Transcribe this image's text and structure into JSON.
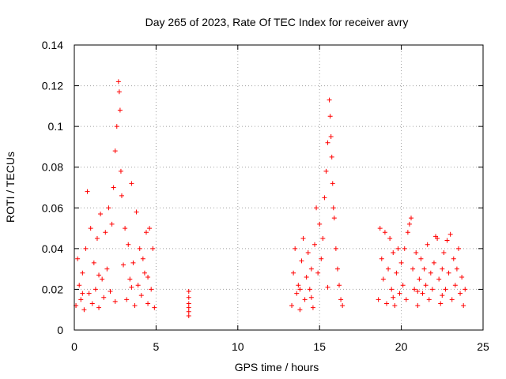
{
  "chart_data": {
    "type": "scatter",
    "title": "Day 265 of 2023, Rate Of TEC Index for receiver avry",
    "xlabel": "GPS time / hours",
    "ylabel": "ROTI / TECUs",
    "xlim": [
      0,
      25
    ],
    "ylim": [
      0,
      0.14
    ],
    "xticks": [
      0,
      5,
      10,
      15,
      20,
      25
    ],
    "yticks": [
      0,
      0.02,
      0.04,
      0.06,
      0.08,
      0.1,
      0.12,
      0.14
    ],
    "grid": true,
    "marker": "plus",
    "colors": {
      "series": "#ff0000",
      "grid": "#a0a0a0",
      "axis": "#000000"
    },
    "series": [
      {
        "points": [
          [
            0.1,
            0.012
          ],
          [
            0.2,
            0.035
          ],
          [
            0.3,
            0.022
          ],
          [
            0.4,
            0.015
          ],
          [
            0.5,
            0.028
          ],
          [
            0.6,
            0.01
          ],
          [
            0.7,
            0.04
          ],
          [
            0.8,
            0.068
          ],
          [
            0.9,
            0.018
          ],
          [
            1.0,
            0.05
          ],
          [
            1.1,
            0.013
          ],
          [
            1.2,
            0.033
          ],
          [
            1.3,
            0.02
          ],
          [
            1.4,
            0.045
          ],
          [
            1.5,
            0.011
          ],
          [
            1.6,
            0.057
          ],
          [
            1.7,
            0.025
          ],
          [
            1.8,
            0.016
          ],
          [
            1.9,
            0.048
          ],
          [
            2.0,
            0.03
          ],
          [
            2.1,
            0.06
          ],
          [
            2.2,
            0.019
          ],
          [
            2.3,
            0.052
          ],
          [
            2.4,
            0.07
          ],
          [
            2.5,
            0.088
          ],
          [
            2.6,
            0.1
          ],
          [
            2.7,
            0.122
          ],
          [
            2.75,
            0.117
          ],
          [
            2.8,
            0.108
          ],
          [
            2.85,
            0.078
          ],
          [
            2.9,
            0.066
          ],
          [
            3.0,
            0.032
          ],
          [
            3.1,
            0.05
          ],
          [
            3.2,
            0.015
          ],
          [
            3.3,
            0.042
          ],
          [
            3.4,
            0.025
          ],
          [
            3.5,
            0.072
          ],
          [
            3.6,
            0.033
          ],
          [
            3.7,
            0.012
          ],
          [
            3.8,
            0.058
          ],
          [
            3.9,
            0.022
          ],
          [
            4.0,
            0.04
          ],
          [
            4.1,
            0.017
          ],
          [
            4.2,
            0.035
          ],
          [
            4.3,
            0.028
          ],
          [
            4.4,
            0.048
          ],
          [
            4.5,
            0.013
          ],
          [
            4.6,
            0.05
          ],
          [
            4.7,
            0.02
          ],
          [
            4.8,
            0.04
          ],
          [
            4.9,
            0.011
          ],
          [
            0.5,
            0.018
          ],
          [
            1.5,
            0.027
          ],
          [
            2.5,
            0.014
          ],
          [
            3.5,
            0.021
          ],
          [
            4.5,
            0.026
          ],
          [
            7.0,
            0.019
          ],
          [
            7.0,
            0.016
          ],
          [
            7.0,
            0.013
          ],
          [
            7.0,
            0.011
          ],
          [
            7.0,
            0.009
          ],
          [
            7.0,
            0.007
          ],
          [
            13.3,
            0.012
          ],
          [
            13.4,
            0.028
          ],
          [
            13.5,
            0.04
          ],
          [
            13.6,
            0.018
          ],
          [
            13.7,
            0.022
          ],
          [
            13.8,
            0.01
          ],
          [
            13.9,
            0.034
          ],
          [
            14.0,
            0.045
          ],
          [
            14.1,
            0.015
          ],
          [
            14.2,
            0.026
          ],
          [
            14.3,
            0.038
          ],
          [
            14.4,
            0.02
          ],
          [
            14.5,
            0.03
          ],
          [
            14.6,
            0.011
          ],
          [
            14.7,
            0.042
          ],
          [
            14.8,
            0.06
          ],
          [
            14.9,
            0.028
          ],
          [
            15.0,
            0.052
          ],
          [
            15.1,
            0.035
          ],
          [
            15.2,
            0.045
          ],
          [
            15.3,
            0.065
          ],
          [
            15.4,
            0.078
          ],
          [
            15.5,
            0.092
          ],
          [
            15.6,
            0.113
          ],
          [
            15.65,
            0.105
          ],
          [
            15.7,
            0.095
          ],
          [
            15.75,
            0.085
          ],
          [
            15.8,
            0.072
          ],
          [
            15.85,
            0.06
          ],
          [
            15.9,
            0.055
          ],
          [
            16.0,
            0.04
          ],
          [
            16.1,
            0.03
          ],
          [
            16.2,
            0.022
          ],
          [
            16.3,
            0.015
          ],
          [
            16.4,
            0.012
          ],
          [
            14.5,
            0.016
          ],
          [
            15.5,
            0.021
          ],
          [
            13.8,
            0.02
          ],
          [
            18.6,
            0.015
          ],
          [
            18.7,
            0.05
          ],
          [
            18.8,
            0.035
          ],
          [
            18.9,
            0.025
          ],
          [
            19.0,
            0.048
          ],
          [
            19.1,
            0.013
          ],
          [
            19.2,
            0.03
          ],
          [
            19.3,
            0.045
          ],
          [
            19.4,
            0.02
          ],
          [
            19.5,
            0.038
          ],
          [
            19.6,
            0.012
          ],
          [
            19.7,
            0.028
          ],
          [
            19.8,
            0.04
          ],
          [
            19.9,
            0.018
          ],
          [
            20.0,
            0.033
          ],
          [
            20.1,
            0.022
          ],
          [
            20.2,
            0.04
          ],
          [
            20.3,
            0.015
          ],
          [
            20.4,
            0.048
          ],
          [
            20.5,
            0.052
          ],
          [
            20.6,
            0.055
          ],
          [
            20.7,
            0.03
          ],
          [
            20.8,
            0.02
          ],
          [
            20.9,
            0.038
          ],
          [
            21.0,
            0.012
          ],
          [
            21.1,
            0.025
          ],
          [
            21.2,
            0.035
          ],
          [
            21.3,
            0.018
          ],
          [
            21.4,
            0.03
          ],
          [
            21.5,
            0.022
          ],
          [
            21.6,
            0.042
          ],
          [
            21.7,
            0.015
          ],
          [
            21.8,
            0.028
          ],
          [
            21.9,
            0.02
          ],
          [
            22.0,
            0.033
          ],
          [
            22.1,
            0.046
          ],
          [
            22.2,
            0.045
          ],
          [
            22.3,
            0.025
          ],
          [
            22.4,
            0.013
          ],
          [
            22.5,
            0.03
          ],
          [
            22.6,
            0.038
          ],
          [
            22.7,
            0.02
          ],
          [
            22.8,
            0.044
          ],
          [
            22.9,
            0.028
          ],
          [
            23.0,
            0.047
          ],
          [
            23.1,
            0.015
          ],
          [
            23.2,
            0.035
          ],
          [
            23.3,
            0.022
          ],
          [
            23.4,
            0.03
          ],
          [
            23.5,
            0.04
          ],
          [
            23.6,
            0.018
          ],
          [
            23.7,
            0.026
          ],
          [
            23.8,
            0.012
          ],
          [
            23.9,
            0.02
          ],
          [
            19.5,
            0.016
          ],
          [
            21.0,
            0.019
          ],
          [
            22.5,
            0.017
          ]
        ]
      }
    ]
  }
}
